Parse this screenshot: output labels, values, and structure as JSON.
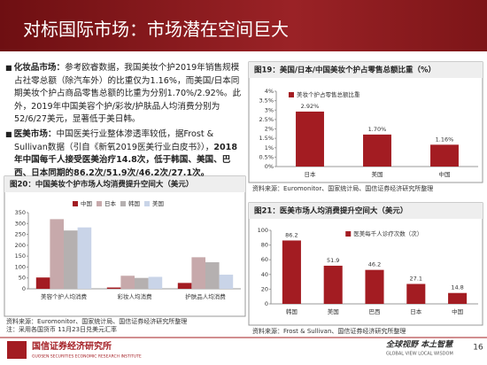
{
  "header": {
    "title": "对标国际市场：市场潜在空间巨大"
  },
  "bullets": [
    {
      "label": "化妆品市场：",
      "text": "参考欧睿数据，我国美妆个护2019年销售规模占社零总额（除汽车外）的比重仅为1.16%，而美国/日本同期美妆个护占商品零售总额的比重为分别1.70%/2.92%。此外，2019年中国美容个护/彩妆/护肤品人均消费分别为52/6/27美元，显著低于美日韩。"
    },
    {
      "label": "医美市场：",
      "text": "中国医美行业整体渗透率较低，据Frost & Sullivan数据（引自《新氧2019医美行业白皮书》），",
      "emphasis": "2018年中国每千人接受医美治疗14.8次，低于韩国、美国、巴西、日本同期的86.2次/51.9次/46.2次/27.1次。"
    }
  ],
  "chart_data": [
    {
      "type": "bar",
      "title": "图19：美国/日本/中国美妆个护占零售总额比重（%）",
      "categories": [
        "日本",
        "美国",
        "中国"
      ],
      "series": [
        {
          "name": "美妆个护占零售总额比重",
          "color": "#a31c22",
          "values": [
            2.92,
            1.7,
            1.16
          ],
          "value_labels": [
            "2.92%",
            "1.70%",
            "1.16%"
          ]
        }
      ],
      "ylim": [
        0,
        4
      ],
      "yticks": [
        {
          "value": 0,
          "label": "0%"
        },
        {
          "value": 0.5,
          "label": "0.5%"
        },
        {
          "value": 1,
          "label": "1%"
        },
        {
          "value": 1.5,
          "label": "1.5%"
        },
        {
          "value": 2,
          "label": "2%"
        },
        {
          "value": 2.5,
          "label": "2.5%"
        },
        {
          "value": 3,
          "label": "3%"
        },
        {
          "value": 3.5,
          "label": "3.5%"
        },
        {
          "value": 4,
          "label": "4%"
        }
      ],
      "grid": false,
      "legend": "upper left",
      "source": "资料来源：Euromonitor、国家统计局、国信证券经济研究所整理"
    },
    {
      "type": "bar",
      "title": "图20：中国美妆个护市场人均消费提升空间大（美元）",
      "categories": [
        "美容个护人均消费",
        "彩妆人均消费",
        "护肤品人均消费"
      ],
      "series": [
        {
          "name": "中国",
          "color": "#a31c22",
          "values": [
            52,
            6,
            27
          ]
        },
        {
          "name": "日本",
          "color": "#c7a9ab",
          "values": [
            320,
            60,
            145
          ]
        },
        {
          "name": "韩国",
          "color": "#b5b0b0",
          "values": [
            268,
            50,
            122
          ]
        },
        {
          "name": "美国",
          "color": "#c9d4e8",
          "values": [
            282,
            55,
            65
          ]
        }
      ],
      "ylim": [
        0,
        350
      ],
      "yticks": [
        0,
        50,
        100,
        150,
        200,
        250,
        300,
        350
      ],
      "grid": false,
      "legend": "upper center",
      "source": "资料来源：Euromonitor、国家统计局、国信证券经济研究所整理",
      "note": "注：采用各国货币 11月23日兑美元汇率"
    },
    {
      "type": "bar",
      "title": "图21：医美市场人均消费提升空间大（美元）",
      "categories": [
        "韩国",
        "美国",
        "巴西",
        "日本",
        "中国"
      ],
      "series": [
        {
          "name": "医美每千人诊疗次数（次）",
          "color": "#a31c22",
          "values": [
            86.2,
            51.9,
            46.2,
            27.1,
            14.8
          ]
        }
      ],
      "data_labels": true,
      "ylim": [
        0,
        100
      ],
      "yticks": [
        0,
        20,
        40,
        60,
        80,
        100
      ],
      "grid": false,
      "legend": "upper right",
      "source": "资料来源：Frost & Sullivan、国信证券经济研究所整理"
    }
  ],
  "footer": {
    "org": "国信证券经济研究所",
    "org_en": "GUOSEN SECURITIES ECONOMIC RESEARCH INSTITUTE",
    "slogan": "全球视野 本土智慧",
    "slogan_en": "GLOBAL VIEW LOCAL WISDOM",
    "page": "16"
  }
}
